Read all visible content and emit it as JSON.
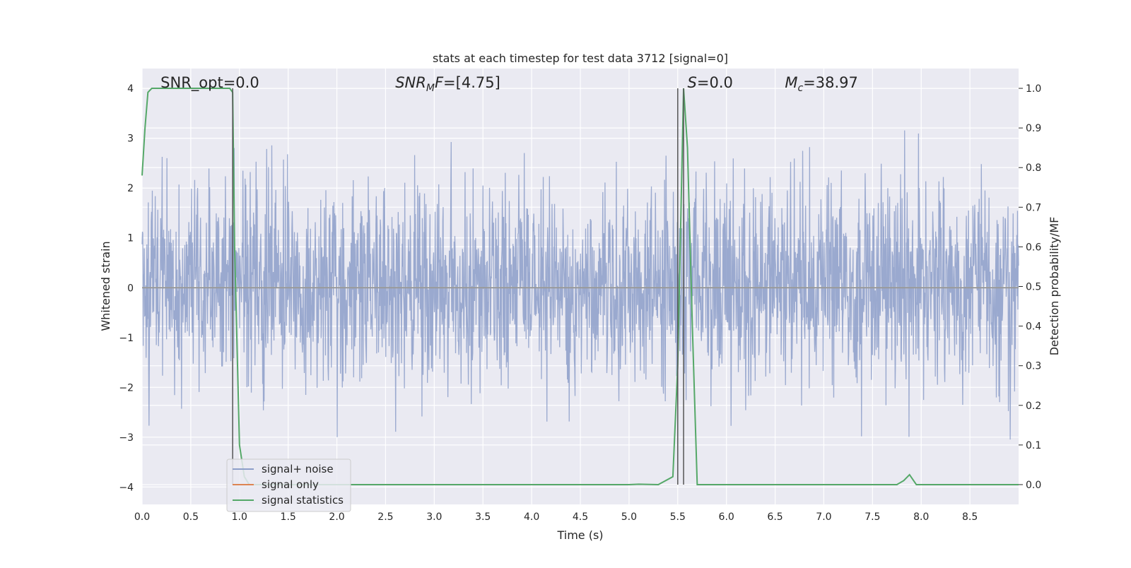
{
  "chart_data": {
    "type": "line",
    "title": "stats at each timestep for test data 3712 [signal=0]",
    "xlabel": "Time (s)",
    "ylabel_left": "Whitened strain",
    "ylabel_right": "Detection probability/MF",
    "xlim": [
      0.0,
      9.0
    ],
    "ylim_left": [
      -4.35,
      4.4
    ],
    "ylim_right": [
      -0.05,
      1.05
    ],
    "xticks": [
      0.0,
      0.5,
      1.0,
      1.5,
      2.0,
      2.5,
      3.0,
      3.5,
      4.0,
      4.5,
      5.0,
      5.5,
      6.0,
      6.5,
      7.0,
      7.5,
      8.0,
      8.5
    ],
    "xtick_labels": [
      "0.0",
      "0.5",
      "1.0",
      "1.5",
      "2.0",
      "2.5",
      "3.0",
      "3.5",
      "4.0",
      "4.5",
      "5.0",
      "5.5",
      "6.0",
      "6.5",
      "7.0",
      "7.5",
      "8.0",
      "8.5"
    ],
    "yticks_left": [
      -4,
      -3,
      -2,
      -1,
      0,
      1,
      2,
      3,
      4
    ],
    "ytick_labels_left": [
      "−4",
      "−3",
      "−2",
      "−1",
      "0",
      "1",
      "2",
      "3",
      "4"
    ],
    "yticks_right": [
      0.0,
      0.1,
      0.2,
      0.3,
      0.4,
      0.5,
      0.6,
      0.7,
      0.8,
      0.9,
      1.0
    ],
    "ytick_labels_right": [
      "0.0",
      "0.1",
      "0.2",
      "0.3",
      "0.4",
      "0.5",
      "0.6",
      "0.7",
      "0.8",
      "0.9",
      "1.0"
    ],
    "annotations": [
      {
        "id": "snr-opt",
        "text": "SNR_opt=0.0",
        "x": 0.19,
        "y": 4.1
      },
      {
        "id": "snr-mf",
        "text": "SNR_MF=[4.75]",
        "x": 2.6,
        "y": 4.1
      },
      {
        "id": "s-stat",
        "text": "S=0.0",
        "x": 5.6,
        "y": 4.1
      },
      {
        "id": "mc",
        "text": "M_c=38.97",
        "x": 6.6,
        "y": 4.1
      }
    ],
    "vertical_lines": [
      0.93,
      5.5,
      5.56
    ],
    "noise_sigma": 1.0,
    "noise_envelope_left": 2.3,
    "series": [
      {
        "name": "signal+ noise",
        "color": "#8c9ec9",
        "kind": "noise",
        "axis": "left"
      },
      {
        "name": "signal only",
        "color": "#dd8452",
        "kind": "flat",
        "axis": "left",
        "values": 0.0
      },
      {
        "name": "signal statistics",
        "color": "#55a868",
        "kind": "line",
        "axis": "right",
        "x": [
          0.0,
          0.03,
          0.06,
          0.1,
          0.15,
          0.2,
          0.3,
          0.5,
          0.7,
          0.85,
          0.9,
          0.93,
          0.95,
          1.0,
          1.05,
          1.1,
          1.2,
          1.5,
          2.0,
          3.0,
          4.0,
          5.0,
          5.1,
          5.3,
          5.45,
          5.5,
          5.56,
          5.6,
          5.65,
          5.7,
          6.0,
          7.0,
          7.5,
          7.75,
          7.82,
          7.88,
          7.95,
          8.0,
          8.5,
          9.0
        ],
        "y": [
          0.78,
          0.9,
          0.99,
          1.0,
          1.0,
          1.0,
          1.0,
          1.0,
          1.0,
          1.0,
          1.0,
          0.99,
          0.6,
          0.1,
          0.02,
          0.0,
          0.0,
          0.0,
          0.0,
          0.0,
          0.0,
          0.0,
          0.001,
          0.0,
          0.02,
          0.3,
          1.0,
          0.85,
          0.4,
          0.0,
          0.0,
          0.0,
          0.0,
          0.0,
          0.01,
          0.025,
          0.0,
          0.0,
          0.0,
          0.0
        ]
      }
    ],
    "legend_location": "lower-left",
    "grid": true,
    "style": {
      "background": "#eaeaf2",
      "grid": "#ffffff",
      "noise_color": "#8c9ec9",
      "signal_color": "#dd8452",
      "stats_color": "#55a868",
      "vline_color": "#555555"
    }
  }
}
